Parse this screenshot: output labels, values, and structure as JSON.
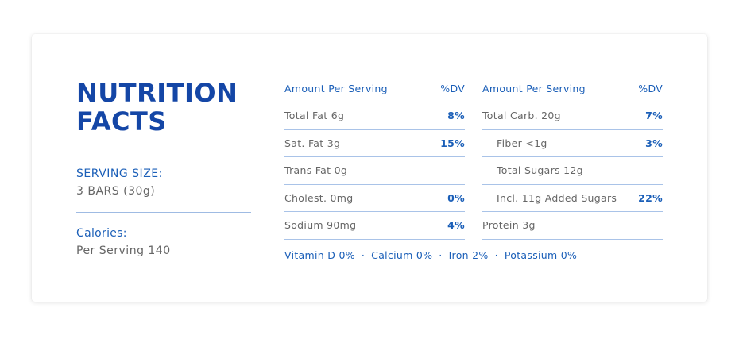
{
  "title_line1": "NUTRITION",
  "title_line2": "FACTS",
  "serving": {
    "label": "SERVING SIZE:",
    "value": "3 BARS (30g)"
  },
  "calories": {
    "label": "Calories:",
    "value": "Per Serving 140"
  },
  "table_left": {
    "header_amount": "Amount Per Serving",
    "header_dv": "%DV",
    "rows": [
      {
        "name": "Total Fat 6g",
        "dv": "8%"
      },
      {
        "name": "Sat. Fat 3g",
        "dv": "15%"
      },
      {
        "name": "Trans Fat 0g",
        "dv": ""
      },
      {
        "name": "Cholest. 0mg",
        "dv": "0%"
      },
      {
        "name": "Sodium 90mg",
        "dv": "4%"
      }
    ]
  },
  "table_right": {
    "header_amount": "Amount Per Serving",
    "header_dv": "%DV",
    "rows": [
      {
        "name": "Total Carb. 20g",
        "dv": "7%"
      },
      {
        "name": "Fiber <1g",
        "dv": "3%"
      },
      {
        "name": "Total Sugars 12g",
        "dv": ""
      },
      {
        "name": "Incl. 11g Added Sugars",
        "dv": "22%"
      },
      {
        "name": "Protein 3g",
        "dv": ""
      }
    ]
  },
  "footnote": {
    "vitamin_d": "Vitamin D 0%",
    "calcium": "Calcium 0%",
    "iron": "Iron 2%",
    "potassium": "Potassium 0%",
    "separator": "·"
  },
  "colors": {
    "brand_blue": "#1446a6",
    "accent_blue": "#1b5fb8",
    "text_gray": "#666666",
    "divider": "#a9c3e8"
  }
}
